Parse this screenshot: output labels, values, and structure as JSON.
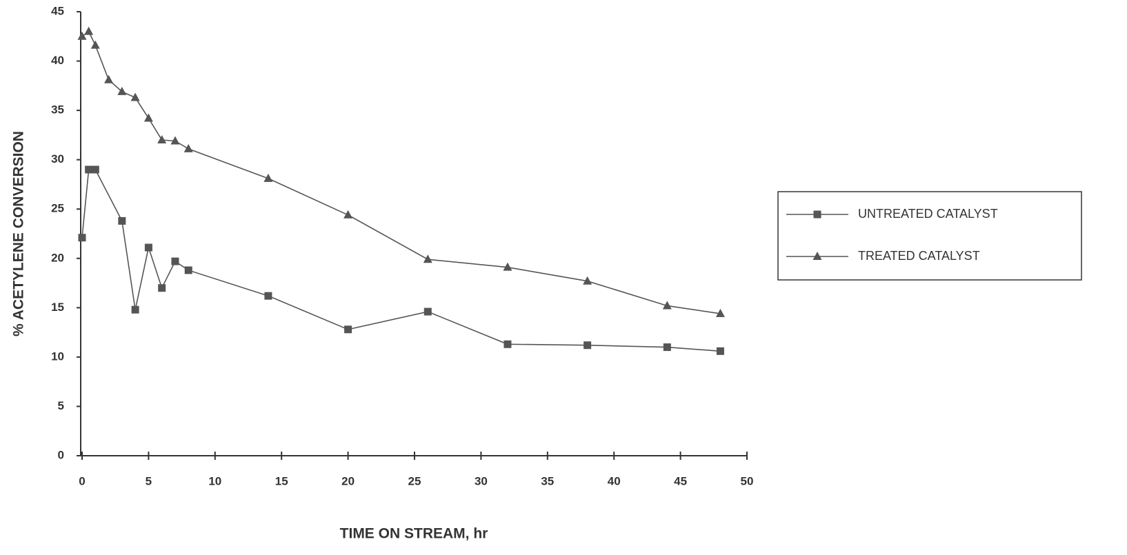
{
  "chart_data": {
    "type": "line",
    "x_label": "TIME ON STREAM, hr",
    "y_label": "% ACETYLENE CONVERSION",
    "xlim": [
      0,
      50
    ],
    "xticks": [
      0,
      5,
      10,
      15,
      20,
      25,
      30,
      35,
      40,
      45,
      50
    ],
    "ylim": [
      0,
      45
    ],
    "yticks": [
      0,
      5,
      10,
      15,
      20,
      25,
      30,
      35,
      40,
      45
    ],
    "legend": "right",
    "series": [
      {
        "name": "UNTREATED CATALYST",
        "color": "#555555",
        "marker": "square",
        "x": [
          0,
          0.5,
          1,
          3,
          4,
          5,
          6,
          7,
          8,
          14,
          20,
          26,
          32,
          38,
          44,
          48
        ],
        "values": [
          22.1,
          29,
          29,
          23.8,
          14.8,
          21.1,
          17,
          19.7,
          18.8,
          16.2,
          12.8,
          14.6,
          11.3,
          11.2,
          11,
          10.6
        ]
      },
      {
        "name": "TREATED CATALYST",
        "color": "#555555",
        "marker": "triangle",
        "x": [
          0,
          0.5,
          1,
          2,
          3,
          4,
          5,
          6,
          7,
          8,
          14,
          20,
          26,
          32,
          38,
          44,
          48
        ],
        "values": [
          42.5,
          43,
          41.6,
          38.1,
          36.9,
          36.3,
          34.2,
          32,
          31.9,
          31.1,
          28.1,
          24.4,
          19.9,
          19.1,
          17.7,
          15.2,
          14.4
        ]
      }
    ]
  }
}
